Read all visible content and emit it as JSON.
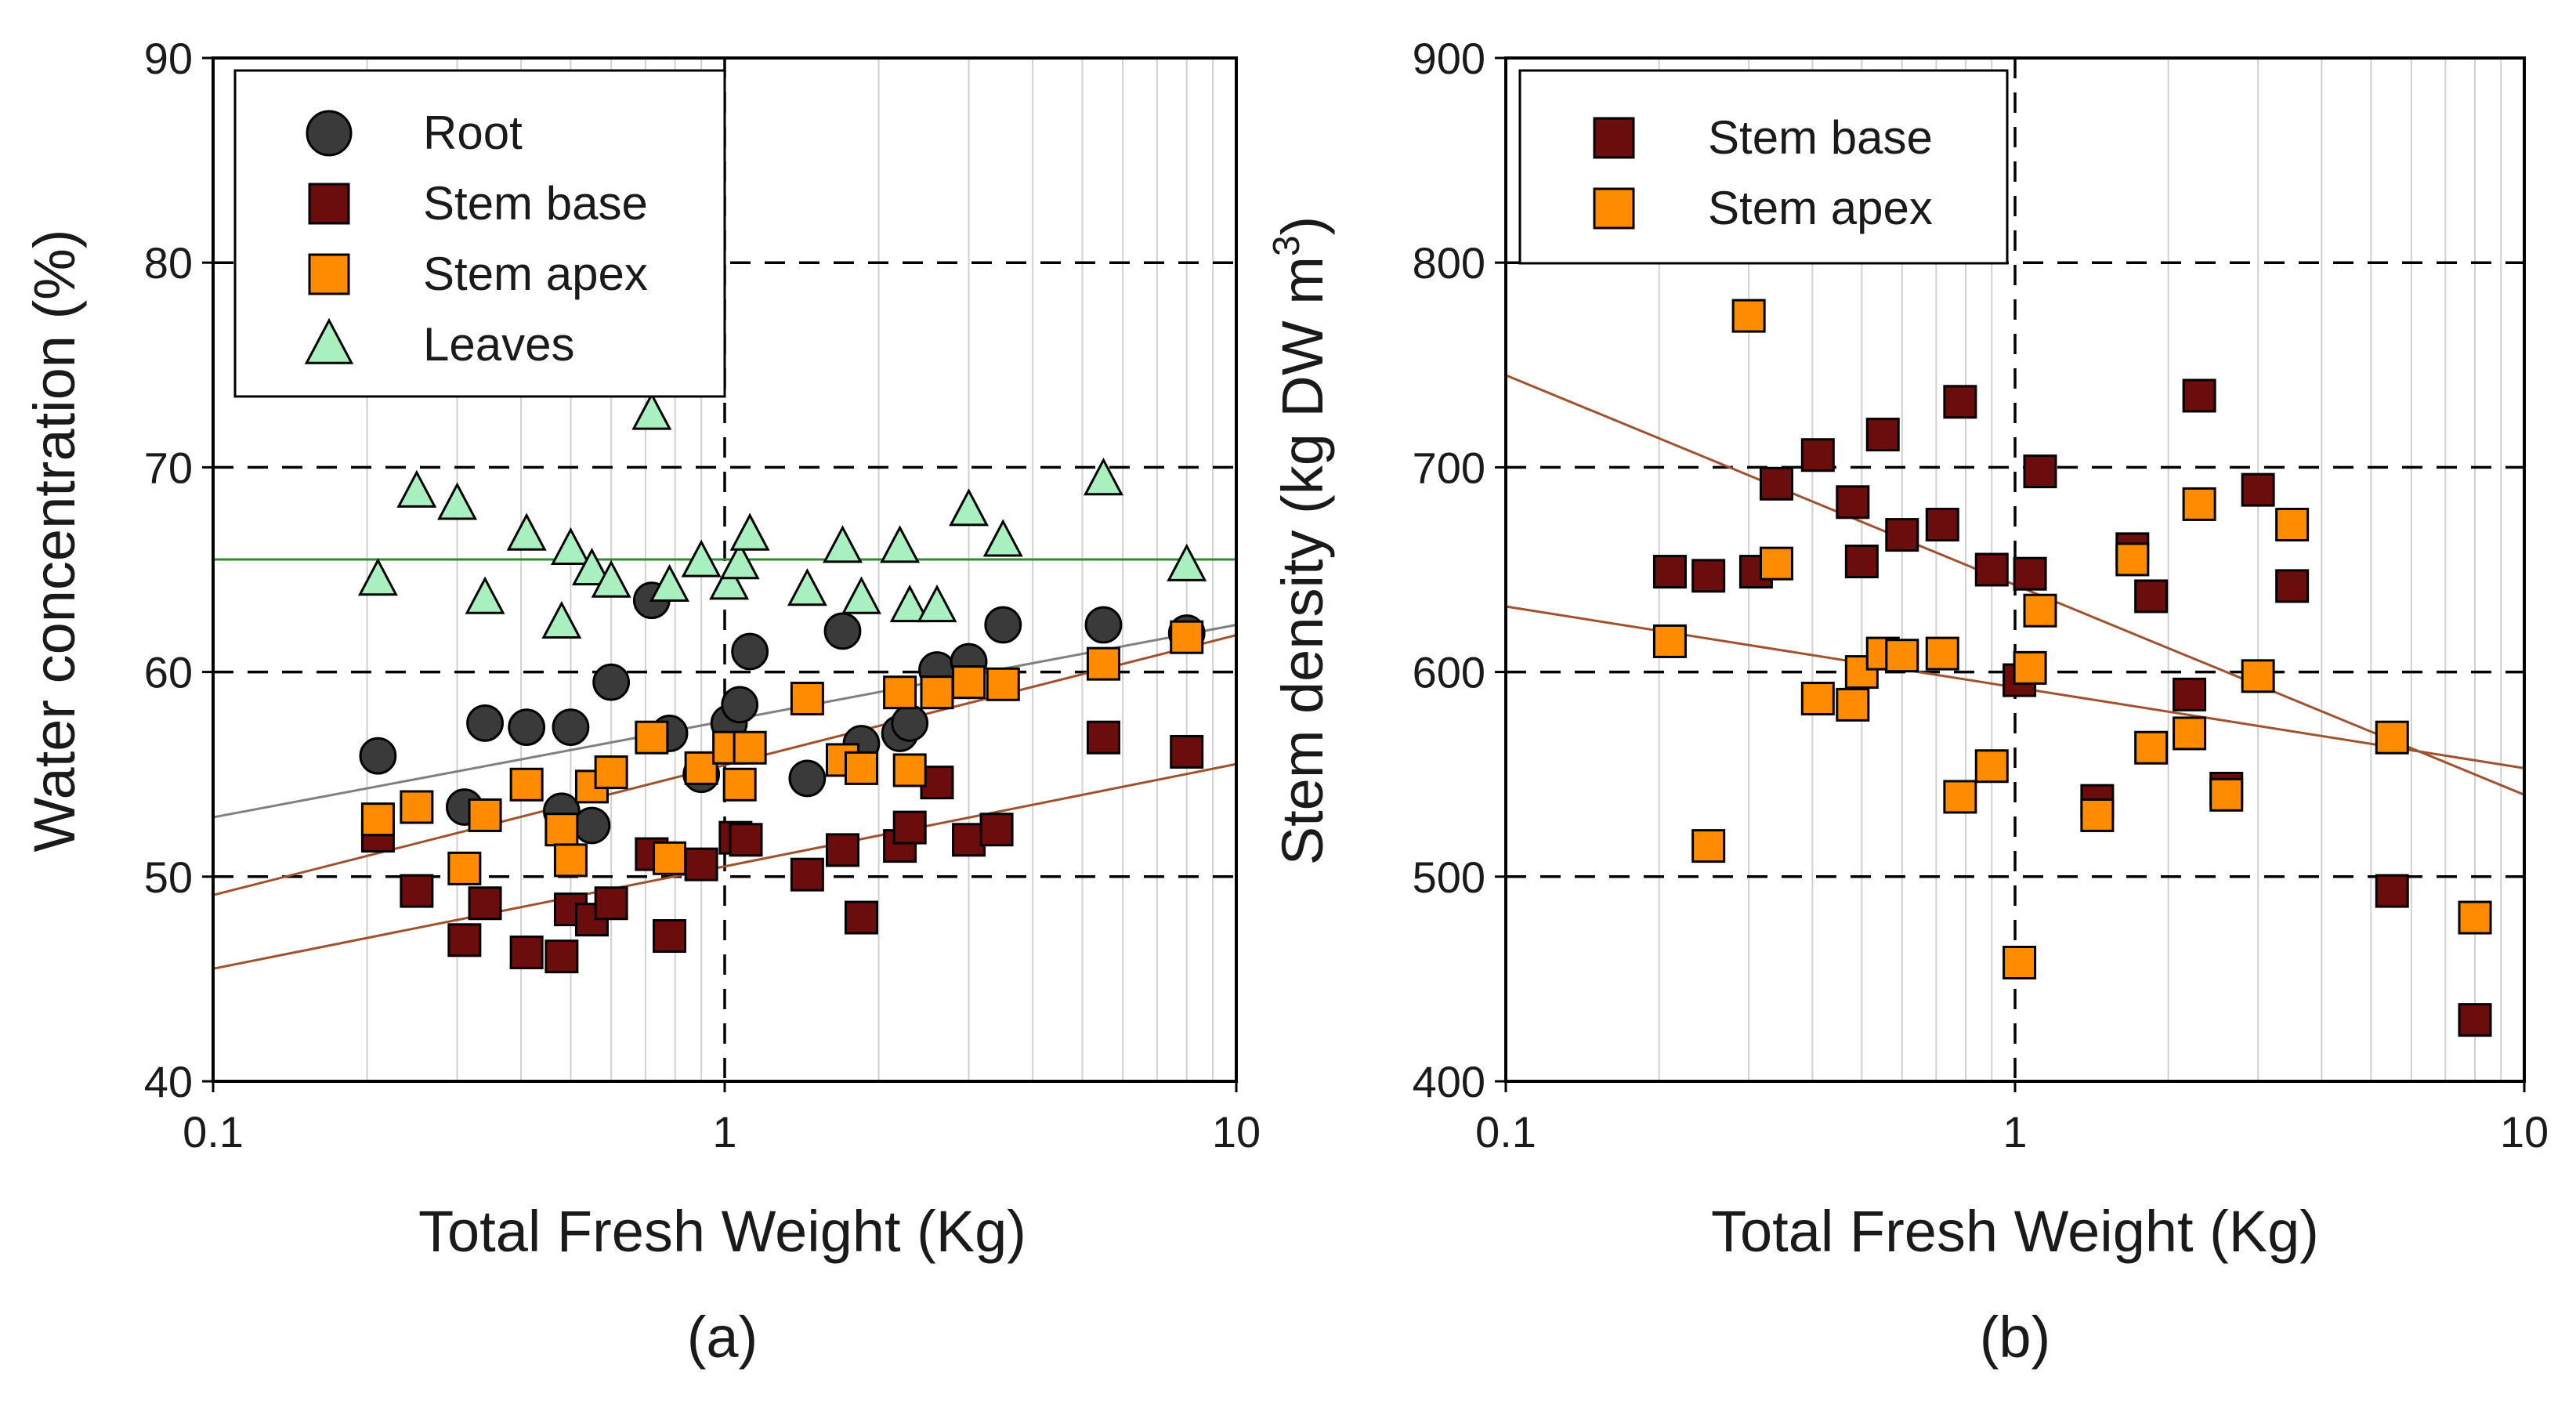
{
  "chart_data": [
    {
      "type": "scatter",
      "panel_label": "(a)",
      "xlabel": "Total Fresh Weight (Kg)",
      "ylabel": "Water concentration (%)",
      "xscale": "log",
      "xlim": [
        0.1,
        10
      ],
      "ylim": [
        40,
        90
      ],
      "xticks": [
        0.1,
        1,
        10
      ],
      "xtick_labels": [
        "0.1",
        "1",
        "10"
      ],
      "yticks": [
        40,
        50,
        60,
        70,
        80,
        90
      ],
      "ytick_labels": [
        "40",
        "50",
        "60",
        "70",
        "80",
        "90"
      ],
      "grid": "dashed horizontal at 50, 60, 70, 80; vertical dashed at x=1; light vertical minor log grid",
      "legend_position": "top-left",
      "series": [
        {
          "name": "Root",
          "marker": "circle",
          "color": "#3a3a3a",
          "points": [
            [
              0.21,
              55.9
            ],
            [
              0.31,
              53.4
            ],
            [
              0.34,
              57.5
            ],
            [
              0.41,
              57.3
            ],
            [
              0.48,
              53.2
            ],
            [
              0.5,
              57.3
            ],
            [
              0.55,
              52.5
            ],
            [
              0.6,
              59.5
            ],
            [
              0.72,
              63.5
            ],
            [
              0.78,
              57.0
            ],
            [
              0.9,
              55.0
            ],
            [
              1.02,
              57.5
            ],
            [
              1.07,
              58.4
            ],
            [
              1.12,
              61.0
            ],
            [
              1.45,
              54.8
            ],
            [
              1.7,
              62.0
            ],
            [
              1.85,
              56.5
            ],
            [
              2.2,
              57.0
            ],
            [
              2.3,
              57.5
            ],
            [
              2.6,
              60.1
            ],
            [
              3.0,
              60.5
            ],
            [
              3.5,
              62.3
            ],
            [
              5.5,
              62.3
            ],
            [
              8.0,
              61.9
            ]
          ]
        },
        {
          "name": "Stem base",
          "marker": "square",
          "color": "#6b0d0d",
          "points": [
            [
              0.21,
              52.0
            ],
            [
              0.25,
              49.3
            ],
            [
              0.31,
              46.9
            ],
            [
              0.34,
              48.7
            ],
            [
              0.41,
              46.3
            ],
            [
              0.48,
              46.1
            ],
            [
              0.5,
              48.4
            ],
            [
              0.55,
              47.9
            ],
            [
              0.6,
              48.7
            ],
            [
              0.72,
              51.1
            ],
            [
              0.78,
              47.1
            ],
            [
              0.9,
              50.6
            ],
            [
              1.05,
              51.9
            ],
            [
              1.1,
              51.8
            ],
            [
              1.45,
              50.1
            ],
            [
              1.7,
              51.3
            ],
            [
              1.85,
              48.0
            ],
            [
              2.2,
              51.5
            ],
            [
              2.3,
              52.4
            ],
            [
              2.6,
              54.6
            ],
            [
              3.0,
              51.8
            ],
            [
              3.4,
              52.3
            ],
            [
              5.5,
              56.8
            ],
            [
              8.0,
              56.1
            ]
          ]
        },
        {
          "name": "Stem apex",
          "marker": "square",
          "color": "#ff8c00",
          "points": [
            [
              0.21,
              52.8
            ],
            [
              0.25,
              53.4
            ],
            [
              0.31,
              50.4
            ],
            [
              0.34,
              53.0
            ],
            [
              0.41,
              54.5
            ],
            [
              0.48,
              52.3
            ],
            [
              0.5,
              50.8
            ],
            [
              0.55,
              54.4
            ],
            [
              0.6,
              55.1
            ],
            [
              0.72,
              56.8
            ],
            [
              0.78,
              50.9
            ],
            [
              0.9,
              55.3
            ],
            [
              1.02,
              56.3
            ],
            [
              1.07,
              54.5
            ],
            [
              1.12,
              56.3
            ],
            [
              1.45,
              58.7
            ],
            [
              1.7,
              55.7
            ],
            [
              1.85,
              55.3
            ],
            [
              2.2,
              59.0
            ],
            [
              2.3,
              55.2
            ],
            [
              2.6,
              59.0
            ],
            [
              3.0,
              59.5
            ],
            [
              3.5,
              59.4
            ],
            [
              5.5,
              60.4
            ],
            [
              8.0,
              61.7
            ]
          ]
        },
        {
          "name": "Leaves",
          "marker": "triangle",
          "color": "#a8f0c0",
          "points": [
            [
              0.21,
              64.5
            ],
            [
              0.25,
              68.8
            ],
            [
              0.3,
              68.2
            ],
            [
              0.34,
              63.6
            ],
            [
              0.41,
              66.7
            ],
            [
              0.48,
              62.4
            ],
            [
              0.5,
              66.0
            ],
            [
              0.55,
              65.0
            ],
            [
              0.6,
              64.4
            ],
            [
              0.72,
              72.6
            ],
            [
              0.78,
              64.2
            ],
            [
              0.9,
              65.4
            ],
            [
              1.02,
              64.3
            ],
            [
              1.07,
              65.3
            ],
            [
              1.12,
              66.7
            ],
            [
              1.45,
              64.0
            ],
            [
              1.7,
              66.1
            ],
            [
              1.85,
              63.6
            ],
            [
              2.2,
              66.1
            ],
            [
              2.3,
              63.2
            ],
            [
              2.6,
              63.2
            ],
            [
              3.0,
              67.9
            ],
            [
              3.5,
              66.4
            ],
            [
              5.5,
              69.4
            ],
            [
              8.0,
              65.2
            ]
          ]
        }
      ],
      "trend_lines": [
        {
          "name": "Root trend",
          "color": "#808080",
          "y_at_xmin": 52.9,
          "y_at_xmax": 62.3
        },
        {
          "name": "Stem apex trend",
          "color": "#a0522d",
          "y_at_xmin": 49.1,
          "y_at_xmax": 61.8
        },
        {
          "name": "Stem base trend",
          "color": "#a0522d",
          "y_at_xmin": 45.5,
          "y_at_xmax": 55.5
        },
        {
          "name": "Leaves mean",
          "color": "#2e8b2e",
          "y_at_xmin": 65.5,
          "y_at_xmax": 65.5
        }
      ]
    },
    {
      "type": "scatter",
      "panel_label": "(b)",
      "xlabel": "Total Fresh Weight (Kg)",
      "ylabel": "Stem density (kg DW m",
      "ylabel_superscript": "3",
      "ylabel_close": ")",
      "xscale": "log",
      "xlim": [
        0.1,
        10
      ],
      "ylim": [
        400,
        900
      ],
      "xticks": [
        0.1,
        1,
        10
      ],
      "xtick_labels": [
        "0.1",
        "1",
        "10"
      ],
      "yticks": [
        400,
        500,
        600,
        700,
        800,
        900
      ],
      "ytick_labels": [
        "400",
        "500",
        "600",
        "700",
        "800",
        "900"
      ],
      "grid": "dashed horizontal at 500, 600, 700, 800; vertical dashed at x=1; light vertical minor log grid",
      "legend_position": "top-left",
      "series": [
        {
          "name": "Stem base",
          "marker": "square",
          "color": "#6b0d0d",
          "points": [
            [
              0.21,
              649
            ],
            [
              0.25,
              647
            ],
            [
              0.31,
              649
            ],
            [
              0.34,
              692
            ],
            [
              0.41,
              706
            ],
            [
              0.48,
              683
            ],
            [
              0.5,
              654
            ],
            [
              0.55,
              716
            ],
            [
              0.6,
              667
            ],
            [
              0.72,
              672
            ],
            [
              0.78,
              732
            ],
            [
              0.9,
              650
            ],
            [
              1.02,
              596
            ],
            [
              1.07,
              648
            ],
            [
              1.12,
              698
            ],
            [
              1.45,
              537
            ],
            [
              1.7,
              660
            ],
            [
              1.85,
              637
            ],
            [
              2.2,
              589
            ],
            [
              2.3,
              735
            ],
            [
              2.6,
              543
            ],
            [
              3.0,
              689
            ],
            [
              3.5,
              642
            ],
            [
              5.5,
              493
            ],
            [
              8.0,
              430
            ]
          ]
        },
        {
          "name": "Stem apex",
          "marker": "square",
          "color": "#ff8c00",
          "points": [
            [
              0.21,
              615
            ],
            [
              0.25,
              515
            ],
            [
              0.3,
              774
            ],
            [
              0.34,
              653
            ],
            [
              0.41,
              587
            ],
            [
              0.48,
              584
            ],
            [
              0.5,
              600
            ],
            [
              0.55,
              609
            ],
            [
              0.6,
              608
            ],
            [
              0.72,
              609
            ],
            [
              0.78,
              539
            ],
            [
              0.9,
              554
            ],
            [
              1.02,
              458
            ],
            [
              1.07,
              602
            ],
            [
              1.12,
              630
            ],
            [
              1.45,
              530
            ],
            [
              1.7,
              655
            ],
            [
              1.85,
              563
            ],
            [
              2.2,
              570
            ],
            [
              2.3,
              682
            ],
            [
              2.6,
              540
            ],
            [
              3.0,
              598
            ],
            [
              3.5,
              672
            ],
            [
              5.5,
              568
            ],
            [
              8.0,
              480
            ]
          ]
        }
      ],
      "trend_lines": [
        {
          "name": "Stem base trend",
          "color": "#a0522d",
          "y_at_xmin": 745,
          "y_at_xmax": 540
        },
        {
          "name": "Stem apex trend",
          "color": "#a0522d",
          "y_at_xmin": 632,
          "y_at_xmax": 553
        }
      ]
    }
  ]
}
